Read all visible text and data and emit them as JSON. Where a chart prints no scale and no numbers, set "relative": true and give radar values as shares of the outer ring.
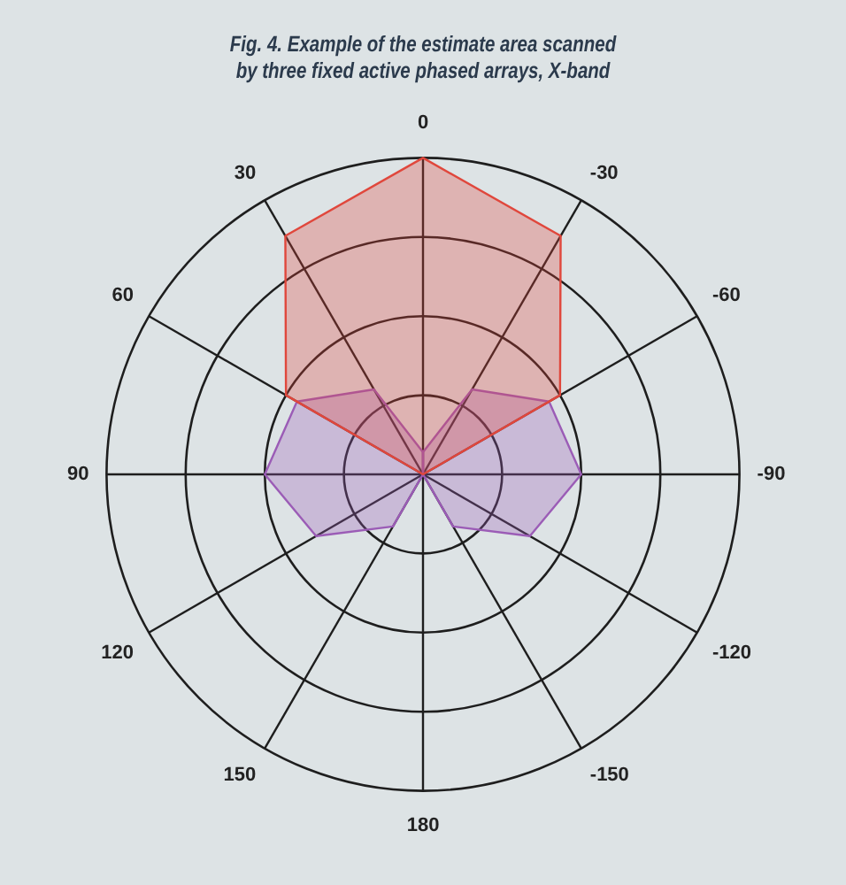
{
  "chart_data": {
    "type": "radar",
    "title": "Fig. 4. Example of the estimate area scanned by three fixed active phased arrays, X-band",
    "categories": [
      "0",
      "-30",
      "-60",
      "-90",
      "-120",
      "-150",
      "180",
      "150",
      "120",
      "90",
      "60",
      "30"
    ],
    "relative": true,
    "grid": true,
    "legend": false,
    "marker": "none",
    "series": [
      {
        "color": "#e0473c",
        "values": [
          1.0,
          0.87,
          0.5,
          0,
          0,
          0,
          0,
          0,
          0,
          0,
          0.5,
          0.87
        ]
      },
      {
        "color": "#9b5cb6",
        "values": [
          0.07,
          0.31,
          0.46,
          0.5,
          0.39,
          0.19,
          0,
          0,
          0,
          0,
          0,
          0
        ]
      },
      {
        "color": "#9b5cb6",
        "values": [
          0.07,
          0,
          0,
          0,
          0,
          0,
          0,
          0.19,
          0.39,
          0.5,
          0.46,
          0.31
        ]
      }
    ]
  }
}
